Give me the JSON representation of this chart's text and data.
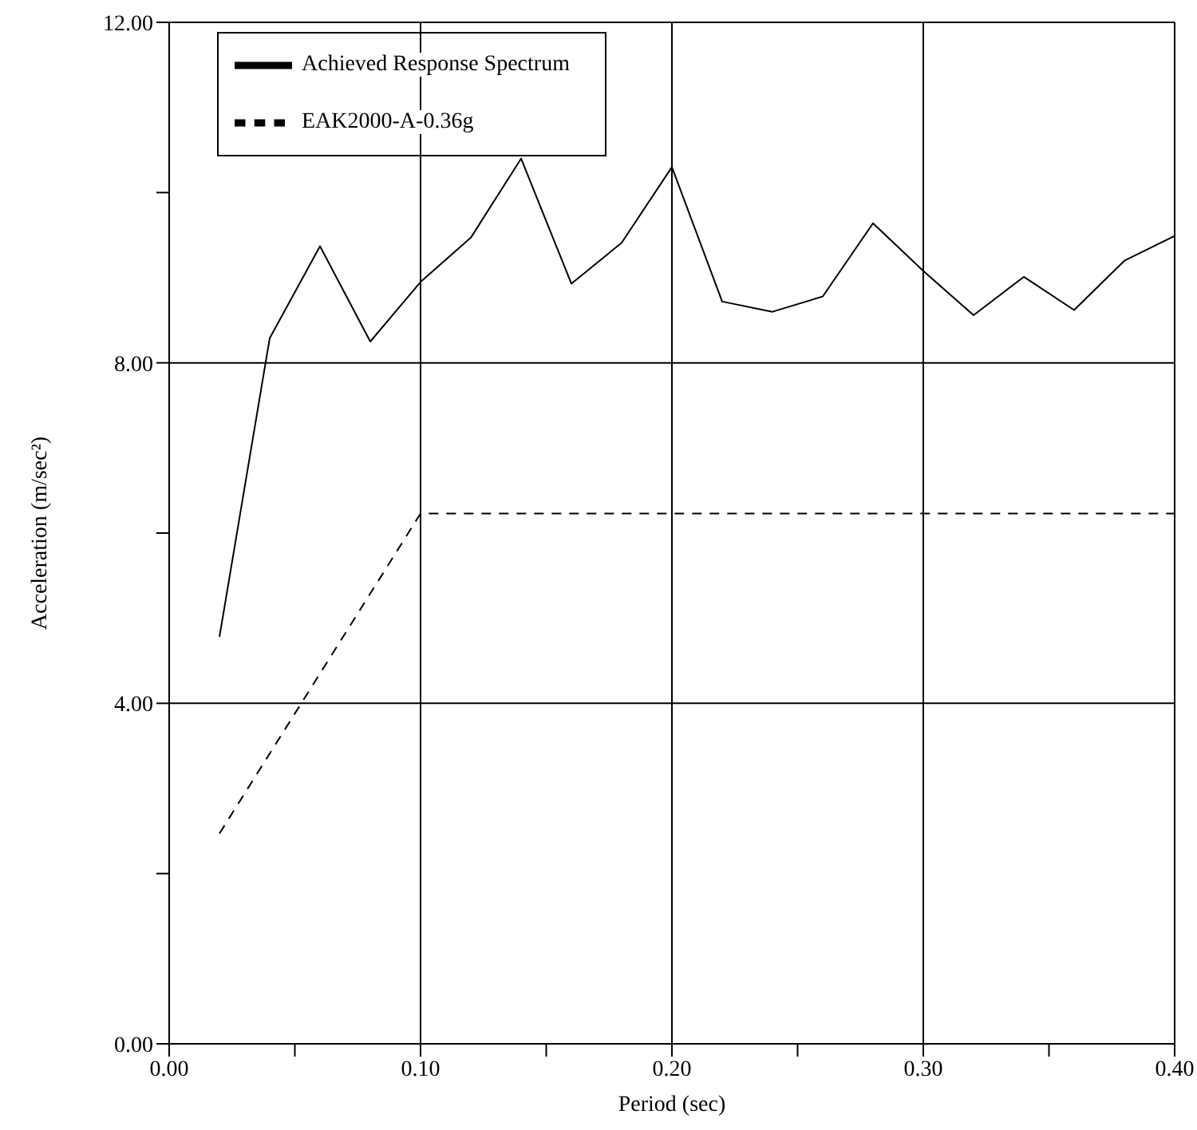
{
  "chart_data": {
    "type": "line",
    "xlabel": "Period (sec)",
    "ylabel": "Acceleration (m/sec²)",
    "xlim": [
      0,
      0.4
    ],
    "ylim": [
      0,
      12
    ],
    "xticks": [
      {
        "value": 0,
        "label": "0.00"
      },
      {
        "value": 0.05,
        "label": null
      },
      {
        "value": 0.1,
        "label": "0.10"
      },
      {
        "value": 0.15,
        "label": null
      },
      {
        "value": 0.2,
        "label": "0.20"
      },
      {
        "value": 0.25,
        "label": null
      },
      {
        "value": 0.3,
        "label": "0.30"
      },
      {
        "value": 0.35,
        "label": null
      },
      {
        "value": 0.4,
        "label": "0.40"
      }
    ],
    "yticks": [
      {
        "value": 0,
        "label": "0.00"
      },
      {
        "value": 2,
        "label": null
      },
      {
        "value": 4,
        "label": "4.00"
      },
      {
        "value": 6,
        "label": null
      },
      {
        "value": 8,
        "label": "8.00"
      },
      {
        "value": 10,
        "label": null
      },
      {
        "value": 12,
        "label": "12.00"
      }
    ],
    "grid": true,
    "legend": "top left",
    "marker": "none",
    "series": [
      {
        "name": "Achieved Response Spectrum",
        "color": "#000000",
        "line_style": "solid",
        "x": [
          0.02,
          0.04,
          0.06,
          0.08,
          0.1,
          0.12,
          0.14,
          0.16,
          0.18,
          0.2,
          0.22,
          0.24,
          0.26,
          0.28,
          0.3,
          0.32,
          0.34,
          0.36,
          0.38,
          0.4
        ],
        "values": [
          4.78,
          8.29,
          9.37,
          8.25,
          8.95,
          9.47,
          10.4,
          8.93,
          9.41,
          10.3,
          8.72,
          8.6,
          8.78,
          9.64,
          9.08,
          8.56,
          9.01,
          8.62,
          9.2,
          9.49
        ]
      },
      {
        "name": "EAK2000-A-0.36g",
        "color": "#000000",
        "line_style": "dashed",
        "x": [
          0.02,
          0.1,
          0.4
        ],
        "values": [
          2.47,
          6.23,
          6.23
        ]
      }
    ]
  }
}
